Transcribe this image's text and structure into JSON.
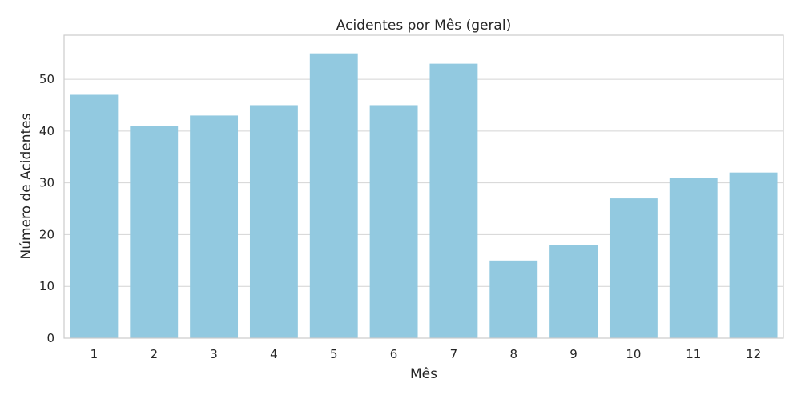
{
  "chart_data": {
    "type": "bar",
    "title": "Acidentes por Mês (geral)",
    "xlabel": "Mês",
    "ylabel": "Número de Acidentes",
    "categories": [
      "1",
      "2",
      "3",
      "4",
      "5",
      "6",
      "7",
      "8",
      "9",
      "10",
      "11",
      "12"
    ],
    "values": [
      47,
      41,
      43,
      45,
      55,
      45,
      53,
      15,
      18,
      27,
      31,
      32
    ],
    "ylim": [
      0,
      58.5
    ],
    "yticks": [
      0,
      10,
      20,
      30,
      40,
      50
    ],
    "grid": "horizontal",
    "bar_color": "#92c9e0",
    "grid_color": "#d4d4d4",
    "spine_color": "#cccccc"
  }
}
